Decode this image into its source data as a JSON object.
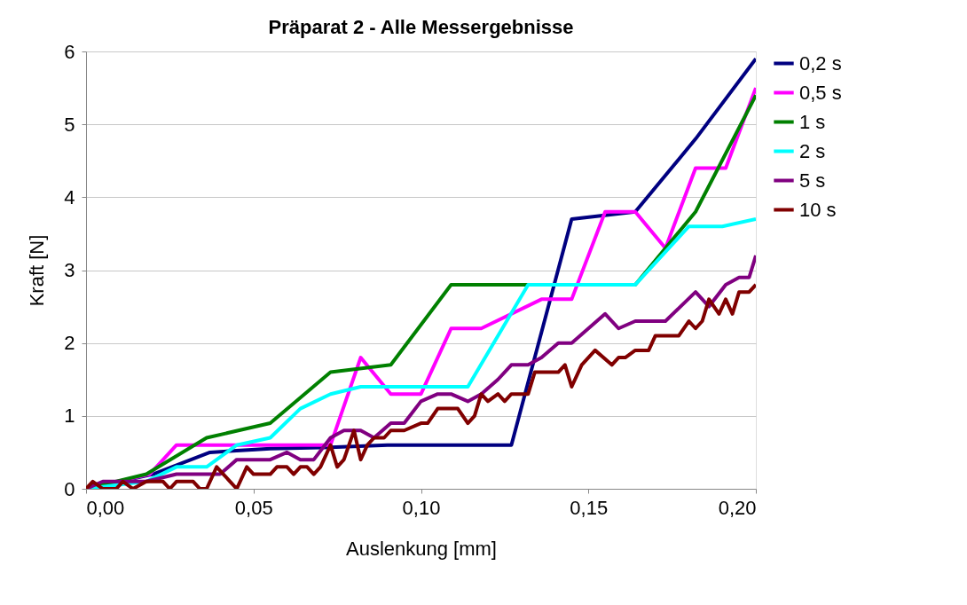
{
  "chart_data": {
    "type": "line",
    "title": "Präparat 2 - Alle Messergebnisse",
    "xlabel": "Auslenkung [mm]",
    "ylabel": "Kraft [N]",
    "xlim": [
      0,
      0.2
    ],
    "ylim": [
      0,
      6
    ],
    "xticks": [
      {
        "value": 0,
        "label": "0,00"
      },
      {
        "value": 0.05,
        "label": "0,05"
      },
      {
        "value": 0.1,
        "label": "0,10"
      },
      {
        "value": 0.15,
        "label": "0,15"
      },
      {
        "value": 0.2,
        "label": "0,20"
      }
    ],
    "yticks": [
      0,
      1,
      2,
      3,
      4,
      5,
      6
    ],
    "grid": "y",
    "legend": "right",
    "marker": "none",
    "line_style": "solid",
    "series": [
      {
        "name": "0,2 s",
        "color": "#000080",
        "x": [
          0,
          0.02,
          0.037,
          0.055,
          0.073,
          0.09,
          0.127,
          0.145,
          0.164,
          0.182,
          0.2
        ],
        "values": [
          0,
          0.2,
          0.5,
          0.55,
          0.57,
          0.6,
          0.6,
          3.7,
          3.8,
          4.8,
          5.9
        ]
      },
      {
        "name": "0,5 s",
        "color": "#ff00ff",
        "x": [
          0,
          0.019,
          0.027,
          0.073,
          0.082,
          0.091,
          0.1,
          0.109,
          0.118,
          0.136,
          0.145,
          0.155,
          0.164,
          0.173,
          0.182,
          0.191,
          0.2
        ],
        "values": [
          0,
          0.2,
          0.6,
          0.6,
          1.8,
          1.3,
          1.3,
          2.2,
          2.2,
          2.6,
          2.6,
          3.8,
          3.8,
          3.3,
          4.4,
          4.4,
          5.5
        ]
      },
      {
        "name": "1 s",
        "color": "#008000",
        "x": [
          0,
          0.018,
          0.036,
          0.055,
          0.073,
          0.091,
          0.109,
          0.164,
          0.182,
          0.2
        ],
        "values": [
          0,
          0.2,
          0.7,
          0.9,
          1.6,
          1.7,
          2.8,
          2.8,
          3.8,
          5.4
        ]
      },
      {
        "name": "2 s",
        "color": "#00ffff",
        "x": [
          0,
          0.018,
          0.027,
          0.036,
          0.045,
          0.055,
          0.064,
          0.073,
          0.082,
          0.114,
          0.132,
          0.164,
          0.18,
          0.19,
          0.2
        ],
        "values": [
          0,
          0.1,
          0.3,
          0.3,
          0.6,
          0.7,
          1.1,
          1.3,
          1.4,
          1.4,
          2.8,
          2.8,
          3.6,
          3.6,
          3.7
        ]
      },
      {
        "name": "5 s",
        "color": "#800080",
        "x": [
          0,
          0.005,
          0.018,
          0.027,
          0.04,
          0.045,
          0.055,
          0.06,
          0.064,
          0.068,
          0.073,
          0.077,
          0.082,
          0.086,
          0.091,
          0.095,
          0.1,
          0.105,
          0.109,
          0.114,
          0.118,
          0.123,
          0.127,
          0.132,
          0.136,
          0.141,
          0.145,
          0.155,
          0.159,
          0.164,
          0.173,
          0.182,
          0.186,
          0.191,
          0.195,
          0.198,
          0.2
        ],
        "values": [
          0,
          0.1,
          0.1,
          0.2,
          0.2,
          0.4,
          0.4,
          0.5,
          0.4,
          0.4,
          0.7,
          0.8,
          0.8,
          0.7,
          0.9,
          0.9,
          1.2,
          1.3,
          1.3,
          1.2,
          1.3,
          1.5,
          1.7,
          1.7,
          1.8,
          2.0,
          2.0,
          2.4,
          2.2,
          2.3,
          2.3,
          2.7,
          2.5,
          2.8,
          2.9,
          2.9,
          3.2
        ]
      },
      {
        "name": "10 s",
        "color": "#800000",
        "x": [
          0,
          0.002,
          0.005,
          0.009,
          0.011,
          0.014,
          0.018,
          0.023,
          0.025,
          0.027,
          0.032,
          0.034,
          0.036,
          0.039,
          0.041,
          0.043,
          0.045,
          0.048,
          0.05,
          0.055,
          0.057,
          0.06,
          0.062,
          0.064,
          0.066,
          0.068,
          0.07,
          0.073,
          0.075,
          0.077,
          0.08,
          0.082,
          0.084,
          0.086,
          0.089,
          0.091,
          0.095,
          0.1,
          0.102,
          0.105,
          0.109,
          0.111,
          0.114,
          0.116,
          0.118,
          0.12,
          0.123,
          0.125,
          0.127,
          0.132,
          0.134,
          0.141,
          0.143,
          0.145,
          0.148,
          0.152,
          0.157,
          0.159,
          0.161,
          0.164,
          0.168,
          0.17,
          0.177,
          0.18,
          0.182,
          0.184,
          0.186,
          0.189,
          0.191,
          0.193,
          0.195,
          0.198,
          0.2
        ],
        "values": [
          0,
          0.1,
          0,
          0,
          0.1,
          0,
          0.1,
          0.1,
          0,
          0.1,
          0.1,
          0,
          0,
          0.3,
          0.2,
          0.1,
          0,
          0.3,
          0.2,
          0.2,
          0.3,
          0.3,
          0.2,
          0.3,
          0.3,
          0.2,
          0.3,
          0.6,
          0.3,
          0.4,
          0.8,
          0.4,
          0.6,
          0.7,
          0.7,
          0.8,
          0.8,
          0.9,
          0.9,
          1.1,
          1.1,
          1.1,
          0.9,
          1.0,
          1.3,
          1.2,
          1.3,
          1.2,
          1.3,
          1.3,
          1.6,
          1.6,
          1.7,
          1.4,
          1.7,
          1.9,
          1.7,
          1.8,
          1.8,
          1.9,
          1.9,
          2.1,
          2.1,
          2.3,
          2.2,
          2.3,
          2.6,
          2.4,
          2.6,
          2.4,
          2.7,
          2.7,
          2.8
        ]
      }
    ]
  }
}
